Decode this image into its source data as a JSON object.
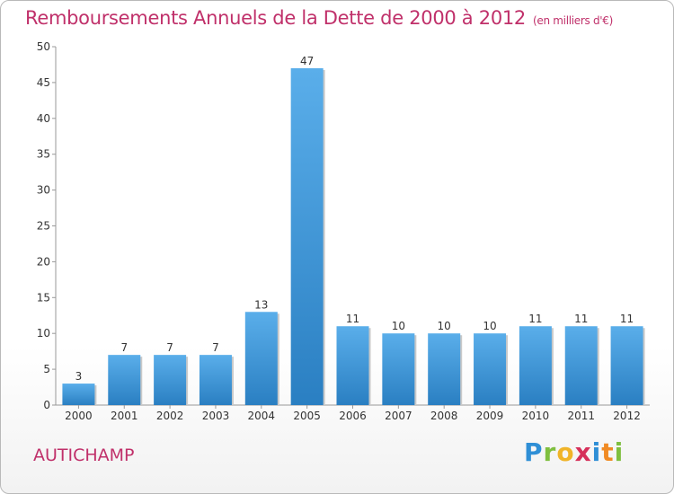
{
  "chart_data": {
    "type": "bar",
    "title": "Remboursements Annuels de la Dette de 2000 à 2012",
    "subtitle": "(en milliers d'€)",
    "categories": [
      "2000",
      "2001",
      "2002",
      "2003",
      "2004",
      "2005",
      "2006",
      "2007",
      "2008",
      "2009",
      "2010",
      "2011",
      "2012"
    ],
    "values": [
      3,
      7,
      7,
      7,
      13,
      47,
      11,
      10,
      10,
      10,
      11,
      11,
      11
    ],
    "ylim": [
      0,
      50
    ],
    "yticks": [
      0,
      5,
      10,
      15,
      20,
      25,
      30,
      35,
      40,
      45,
      50
    ],
    "grid": false,
    "bar_color": "#3a97dc"
  },
  "footer": {
    "commune": "AUTICHAMP",
    "logo": "Proxiti"
  }
}
